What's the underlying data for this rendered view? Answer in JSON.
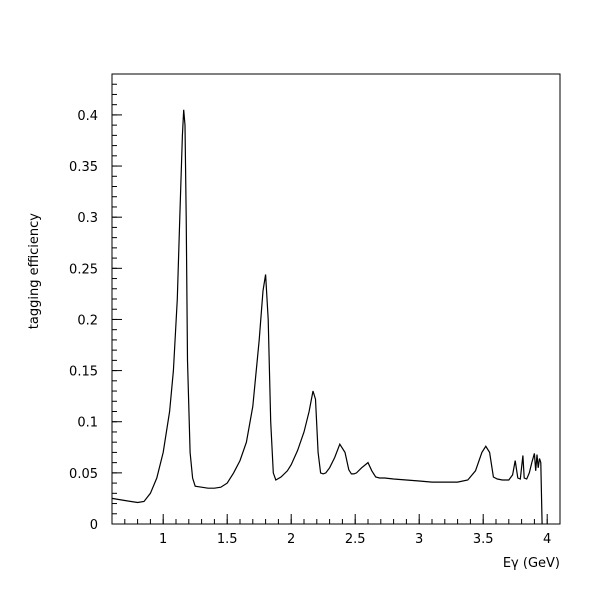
{
  "chart_data": {
    "type": "line",
    "xlabel": "Eγ (GeV)",
    "ylabel": "tagging efficiency",
    "xlim": [
      0.6,
      4.1
    ],
    "ylim": [
      0,
      0.44
    ],
    "xticks": [
      1,
      1.5,
      2,
      2.5,
      3,
      3.5,
      4
    ],
    "xtick_labels": [
      "1",
      "1.5",
      "2",
      "2.5",
      "3",
      "3.5",
      "4"
    ],
    "yticks": [
      0,
      0.05,
      0.1,
      0.15,
      0.2,
      0.25,
      0.3,
      0.35,
      0.4
    ],
    "ytick_labels": [
      "0",
      "0.05",
      "0.1",
      "0.15",
      "0.2",
      "0.25",
      "0.3",
      "0.35",
      "0.4"
    ],
    "grid": false,
    "series": [
      {
        "x": [
          0.6,
          0.7,
          0.8,
          0.85,
          0.9,
          0.95,
          1.0,
          1.05,
          1.08,
          1.11,
          1.13,
          1.15,
          1.16,
          1.17,
          1.18,
          1.19,
          1.21,
          1.23,
          1.25,
          1.3,
          1.35,
          1.4,
          1.45,
          1.5,
          1.55,
          1.6,
          1.65,
          1.7,
          1.75,
          1.78,
          1.8,
          1.82,
          1.84,
          1.86,
          1.88,
          1.92,
          1.97,
          2.0,
          2.05,
          2.1,
          2.14,
          2.17,
          2.19,
          2.21,
          2.23,
          2.25,
          2.27,
          2.3,
          2.34,
          2.38,
          2.42,
          2.45,
          2.47,
          2.49,
          2.51,
          2.55,
          2.6,
          2.63,
          2.66,
          2.69,
          2.73,
          2.8,
          2.9,
          3.0,
          3.1,
          3.2,
          3.3,
          3.38,
          3.44,
          3.49,
          3.52,
          3.55,
          3.58,
          3.61,
          3.65,
          3.7,
          3.73,
          3.75,
          3.77,
          3.79,
          3.81,
          3.82,
          3.84,
          3.86,
          3.88,
          3.9,
          3.91,
          3.92,
          3.93,
          3.94,
          3.95,
          3.96
        ],
        "y": [
          0.025,
          0.023,
          0.021,
          0.022,
          0.03,
          0.045,
          0.07,
          0.11,
          0.15,
          0.22,
          0.3,
          0.38,
          0.405,
          0.39,
          0.3,
          0.16,
          0.07,
          0.045,
          0.037,
          0.036,
          0.035,
          0.035,
          0.036,
          0.04,
          0.05,
          0.062,
          0.08,
          0.115,
          0.18,
          0.228,
          0.244,
          0.2,
          0.1,
          0.05,
          0.043,
          0.046,
          0.052,
          0.058,
          0.072,
          0.09,
          0.11,
          0.13,
          0.122,
          0.07,
          0.05,
          0.049,
          0.05,
          0.055,
          0.065,
          0.078,
          0.07,
          0.053,
          0.049,
          0.049,
          0.05,
          0.055,
          0.06,
          0.052,
          0.046,
          0.045,
          0.045,
          0.044,
          0.043,
          0.042,
          0.041,
          0.041,
          0.041,
          0.043,
          0.052,
          0.07,
          0.076,
          0.07,
          0.046,
          0.044,
          0.043,
          0.043,
          0.048,
          0.062,
          0.045,
          0.044,
          0.067,
          0.045,
          0.044,
          0.05,
          0.06,
          0.069,
          0.052,
          0.068,
          0.055,
          0.064,
          0.06,
          0.0
        ]
      }
    ]
  }
}
